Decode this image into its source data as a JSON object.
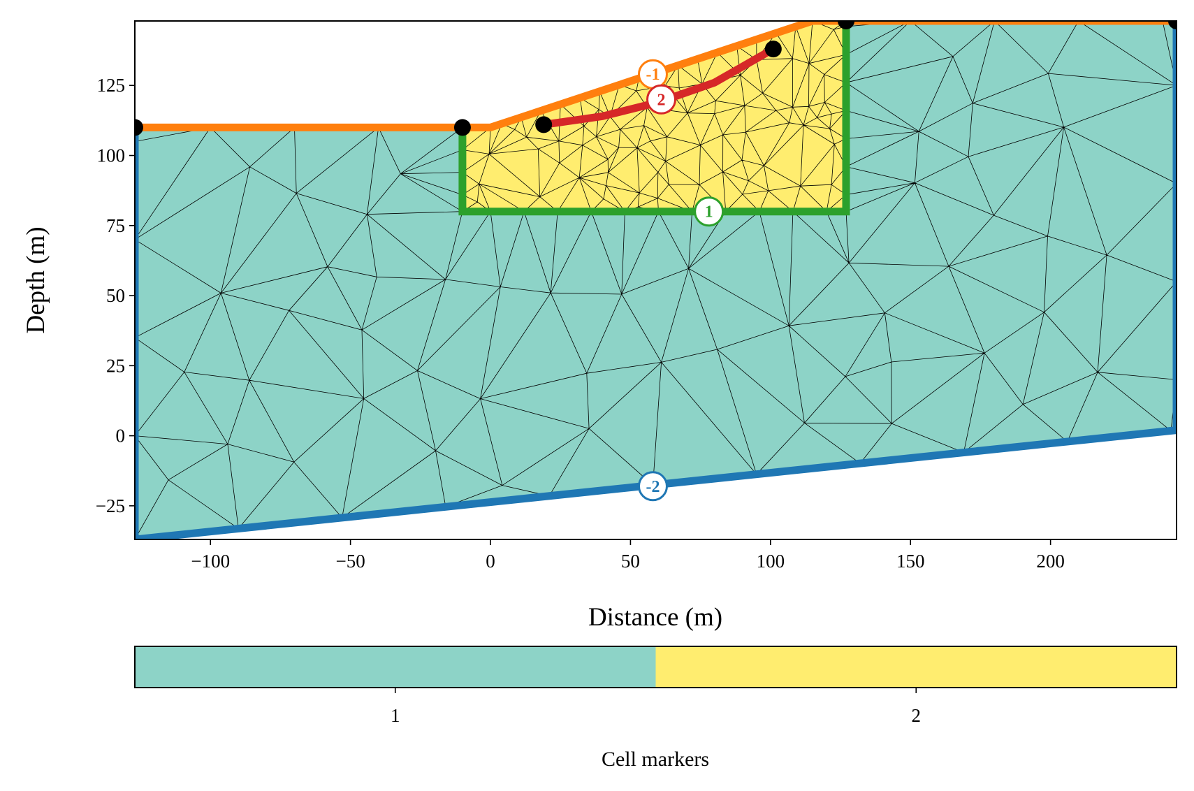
{
  "chart_data": {
    "type": "mesh",
    "xlabel": "Distance (m)",
    "ylabel": "Depth (m)",
    "xlim": [
      -127,
      245
    ],
    "ylim": [
      -37,
      148
    ],
    "xticks": [
      -100,
      -50,
      0,
      50,
      100,
      150,
      200
    ],
    "xtick_labels": [
      "−100",
      "−50",
      "0",
      "50",
      "100",
      "150",
      "200"
    ],
    "yticks": [
      -25,
      0,
      25,
      50,
      75,
      100,
      125
    ],
    "ytick_labels": [
      "−25",
      "0",
      "25",
      "50",
      "75",
      "100",
      "125"
    ],
    "regions": [
      {
        "marker": 1,
        "color": "#8dd3c7",
        "polygon": [
          [
            -127,
            110
          ],
          [
            0,
            110
          ],
          [
            115,
            148
          ],
          [
            245,
            148
          ],
          [
            245,
            2
          ],
          [
            -127,
            -37
          ]
        ]
      },
      {
        "marker": 2,
        "color": "#ffed6f",
        "polygon": [
          [
            -10,
            110
          ],
          [
            0,
            110
          ],
          [
            115,
            148
          ],
          [
            127,
            148
          ],
          [
            127,
            80
          ],
          [
            -10,
            80
          ]
        ]
      }
    ],
    "boundaries": [
      {
        "marker": -1,
        "color": "#ff7f0e",
        "points": [
          [
            -127,
            110
          ],
          [
            0,
            110
          ],
          [
            115,
            148
          ],
          [
            245,
            148
          ]
        ],
        "label_at": [
          58,
          129
        ]
      },
      {
        "marker": -2,
        "color": "#1f77b4",
        "points": [
          [
            -127,
            110
          ],
          [
            -127,
            -37
          ],
          [
            245,
            2
          ],
          [
            245,
            148
          ]
        ],
        "label_at": [
          58,
          -18
        ]
      },
      {
        "marker": 1,
        "color": "#2ca02c",
        "points": [
          [
            -10,
            110
          ],
          [
            -10,
            80
          ],
          [
            127,
            80
          ],
          [
            127,
            148
          ]
        ],
        "label_at": [
          78,
          80
        ]
      },
      {
        "marker": 2,
        "color": "#d62728",
        "points": [
          [
            19,
            111
          ],
          [
            40,
            114
          ],
          [
            60,
            119
          ],
          [
            80,
            126
          ],
          [
            101,
            138
          ]
        ],
        "label_at": [
          61,
          120
        ]
      }
    ],
    "nodes": [
      [
        -127,
        110
      ],
      [
        -10,
        110
      ],
      [
        19,
        111
      ],
      [
        101,
        138
      ],
      [
        127,
        148
      ],
      [
        245,
        148
      ]
    ],
    "colorbar": {
      "label": "Cell markers",
      "ticks": [
        1,
        2
      ],
      "colors": [
        "#8dd3c7",
        "#ffed6f"
      ]
    }
  }
}
